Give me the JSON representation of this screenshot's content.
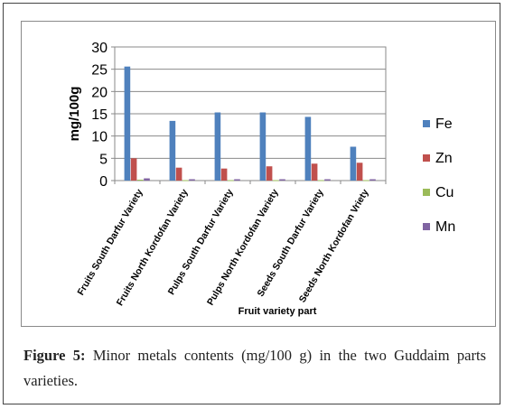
{
  "chart_data": {
    "type": "bar",
    "xlabel": "Fruit variety part",
    "ylabel": "mg/100g",
    "ylim": [
      0,
      30
    ],
    "yticks": [
      "0",
      "5",
      "10",
      "15",
      "20",
      "25",
      "30"
    ],
    "grid": true,
    "legend_position": "right",
    "categories": [
      "Fruits South Darfur Variety",
      "Fruits North Kordofan Variety",
      "Pulps South Darfur Variety",
      "Pulps North Kordofan Variety",
      "Seeds South Darfur Variety",
      "Seeds North Kordofan Vriety"
    ],
    "series": [
      {
        "name": "Fe",
        "color": "#4f81bd",
        "values": [
          25.6,
          13.4,
          15.3,
          15.3,
          14.3,
          7.6
        ]
      },
      {
        "name": "Zn",
        "color": "#c0504d",
        "values": [
          5.0,
          2.9,
          2.7,
          3.2,
          3.8,
          4.0
        ]
      },
      {
        "name": "Cu",
        "color": "#9bbb59",
        "values": [
          0.2,
          0.1,
          0.1,
          0.1,
          0.1,
          0.1
        ]
      },
      {
        "name": "Mn",
        "color": "#8064a2",
        "values": [
          0.5,
          0.3,
          0.3,
          0.3,
          0.3,
          0.3
        ]
      }
    ]
  },
  "caption": {
    "label": "Figure 5:",
    "text": " Minor metals contents (mg/100 g) in the two Guddaim parts varieties."
  }
}
